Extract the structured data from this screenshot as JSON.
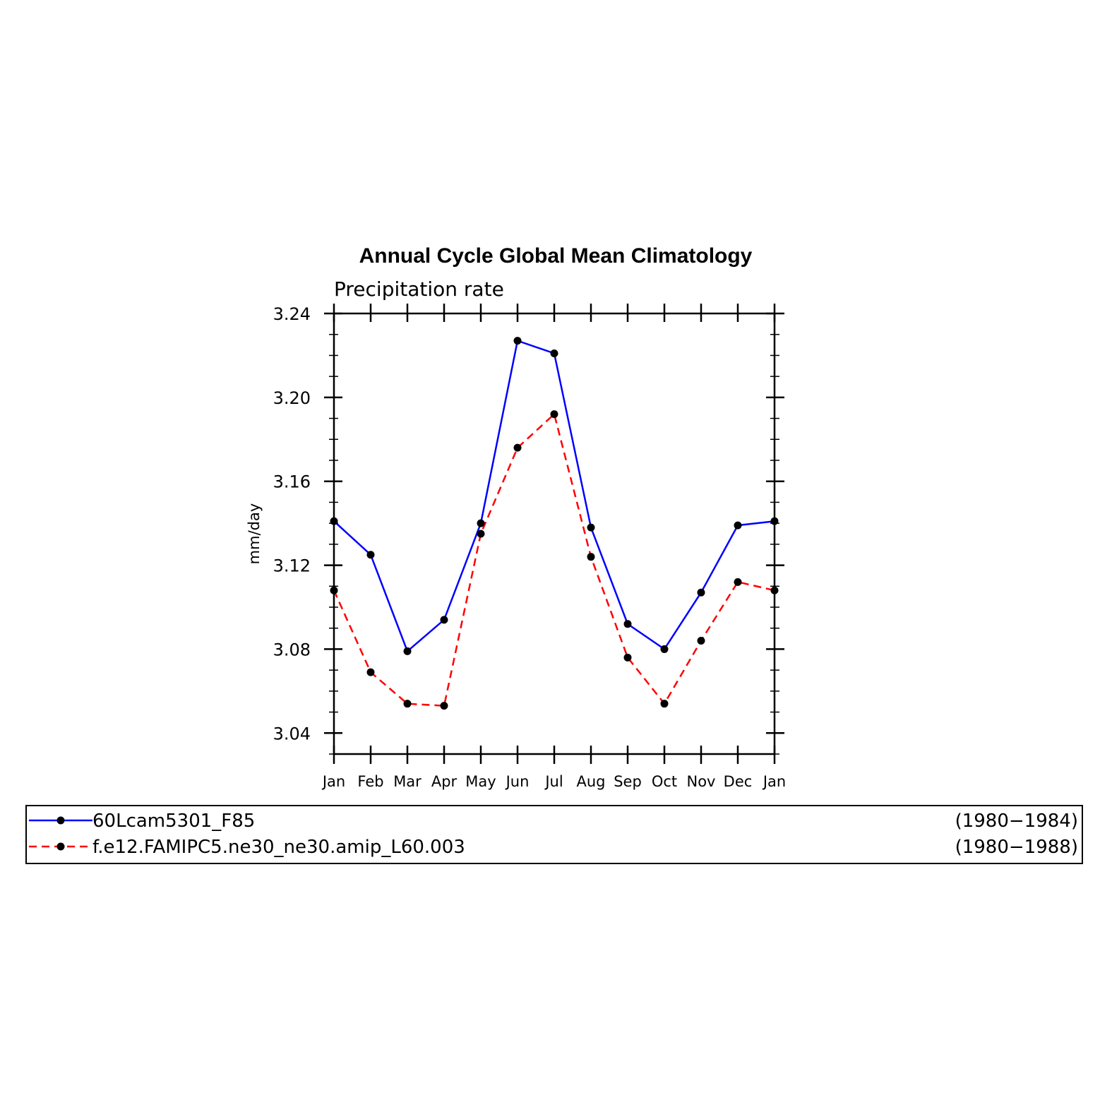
{
  "chart_data": {
    "type": "line",
    "title": "Annual Cycle Global Mean Climatology",
    "subtitle": "Precipitation rate",
    "ylabel": "mm/day",
    "xlabel": "",
    "categories": [
      "Jan",
      "Feb",
      "Mar",
      "Apr",
      "May",
      "Jun",
      "Jul",
      "Aug",
      "Sep",
      "Oct",
      "Nov",
      "Dec",
      "Jan"
    ],
    "ylim": [
      3.03,
      3.24
    ],
    "yticks": [
      3.04,
      3.08,
      3.12,
      3.16,
      3.2,
      3.24
    ],
    "ytick_labels": [
      "3.04",
      "3.08",
      "3.12",
      "3.16",
      "3.20",
      "3.24"
    ],
    "grid": false,
    "legend_position": "bottom",
    "series": [
      {
        "name": "60Lcam5301_F85",
        "period": "(1980−1984)",
        "color": "#0000ff",
        "line_style": "solid",
        "marker": "filled-circle",
        "marker_color": "#000000",
        "values": [
          3.141,
          3.125,
          3.079,
          3.094,
          3.14,
          3.227,
          3.221,
          3.138,
          3.092,
          3.08,
          3.107,
          3.139,
          3.141
        ]
      },
      {
        "name": "f.e12.FAMIPC5.ne30_ne30.amip_L60.003",
        "period": "(1980−1988)",
        "color": "#ff0000",
        "line_style": "dashed",
        "marker": "filled-circle",
        "marker_color": "#000000",
        "values": [
          3.108,
          3.069,
          3.054,
          3.053,
          3.135,
          3.176,
          3.192,
          3.124,
          3.076,
          3.054,
          3.084,
          3.112,
          3.108
        ]
      }
    ]
  }
}
